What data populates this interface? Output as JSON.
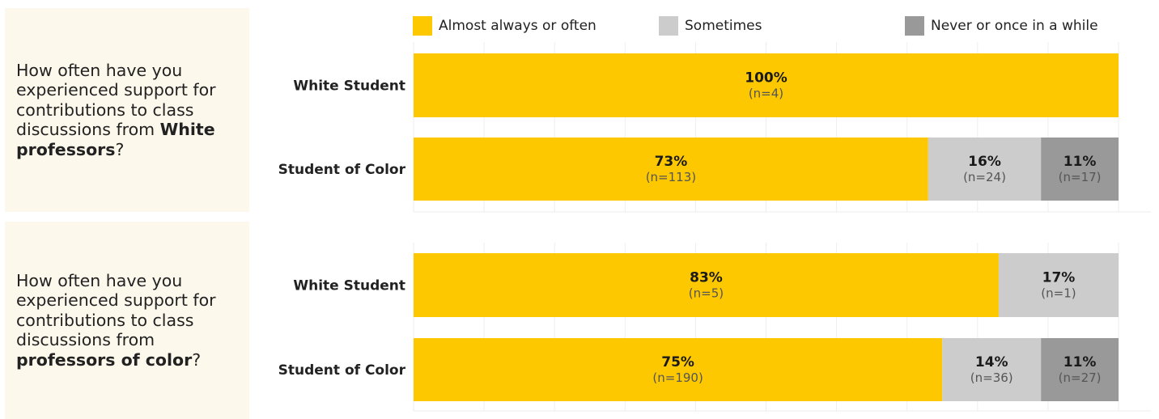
{
  "legend": {
    "items": [
      {
        "label": "Almost always or often",
        "color": "#fdc800"
      },
      {
        "label": "Sometimes",
        "color": "#cccccc"
      },
      {
        "label": "Never or once in a while",
        "color": "#999999"
      }
    ]
  },
  "panels": [
    {
      "question_pre": "How often have you experienced support for contributions to class discussions from ",
      "question_bold": "White professors",
      "question_post": "?"
    },
    {
      "question_pre": "How often have you experienced support for contributions to class discussions from ",
      "question_bold": "professors of color",
      "question_post": "?"
    }
  ],
  "chart_data": [
    {
      "type": "bar",
      "orientation": "horizontal",
      "stacked": true,
      "title": "",
      "categories": [
        "White Student",
        "Student of Color"
      ],
      "series": [
        {
          "name": "Almost always or often",
          "values": [
            100,
            73
          ],
          "labels": [
            "100%",
            "73%"
          ],
          "n": [
            "(n=4)",
            "(n=113)"
          ]
        },
        {
          "name": "Sometimes",
          "values": [
            0,
            16
          ],
          "labels": [
            "",
            "16%"
          ],
          "n": [
            "",
            "(n=24)"
          ]
        },
        {
          "name": "Never or once in a while",
          "values": [
            0,
            11
          ],
          "labels": [
            "",
            "11%"
          ],
          "n": [
            "",
            "(n=17)"
          ]
        }
      ],
      "xlim": [
        0,
        100
      ],
      "grid": true
    },
    {
      "type": "bar",
      "orientation": "horizontal",
      "stacked": true,
      "title": "",
      "categories": [
        "White Student",
        "Student of Color"
      ],
      "series": [
        {
          "name": "Almost always or often",
          "values": [
            83,
            75
          ],
          "labels": [
            "83%",
            "75%"
          ],
          "n": [
            "(n=5)",
            "(n=190)"
          ]
        },
        {
          "name": "Sometimes",
          "values": [
            17,
            14
          ],
          "labels": [
            "17%",
            "14%"
          ],
          "n": [
            "(n=1)",
            "(n=36)"
          ]
        },
        {
          "name": "Never or once in a while",
          "values": [
            0,
            11
          ],
          "labels": [
            "",
            "11%"
          ],
          "n": [
            "",
            "(n=27)"
          ]
        }
      ],
      "xlim": [
        0,
        100
      ],
      "grid": true
    }
  ]
}
